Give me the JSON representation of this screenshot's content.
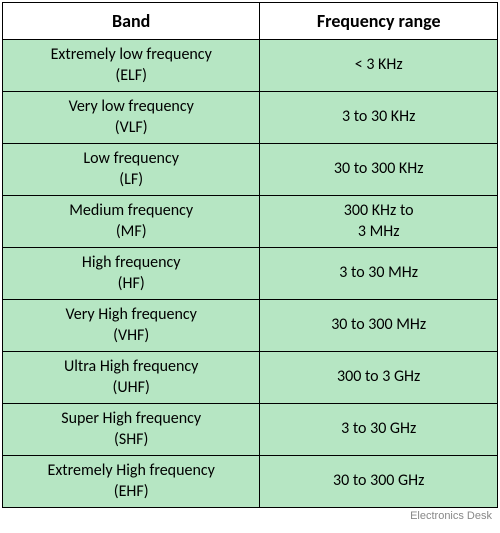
{
  "table": {
    "columns": [
      "Band",
      "Frequency range"
    ],
    "column_widths": [
      "52%",
      "48%"
    ],
    "header_background": "#ffffff",
    "cell_background": "#b6e6c3",
    "border_color": "#000000",
    "header_fontsize": 18,
    "cell_fontsize": 16,
    "rows": [
      {
        "band_name": "Extremely low frequency",
        "band_abbr": "(ELF)",
        "range": "< 3 KHz"
      },
      {
        "band_name": "Very low frequency",
        "band_abbr": "(VLF)",
        "range": "3 to 30 KHz"
      },
      {
        "band_name": "Low frequency",
        "band_abbr": "(LF)",
        "range": "30 to 300 KHz"
      },
      {
        "band_name": "Medium frequency",
        "band_abbr": "(MF)",
        "range": "300 KHz to\n3 MHz"
      },
      {
        "band_name": "High frequency",
        "band_abbr": "(HF)",
        "range": "3 to 30 MHz"
      },
      {
        "band_name": "Very High frequency",
        "band_abbr": "(VHF)",
        "range": "30 to 300 MHz"
      },
      {
        "band_name": "Ultra High frequency",
        "band_abbr": "(UHF)",
        "range": "300 to 3 GHz"
      },
      {
        "band_name": "Super High frequency",
        "band_abbr": "(SHF)",
        "range": "3 to 30 GHz"
      },
      {
        "band_name": "Extremely High frequency",
        "band_abbr": "(EHF)",
        "range": "30 to 300 GHz"
      }
    ]
  },
  "footer_text": "Electronics Desk"
}
